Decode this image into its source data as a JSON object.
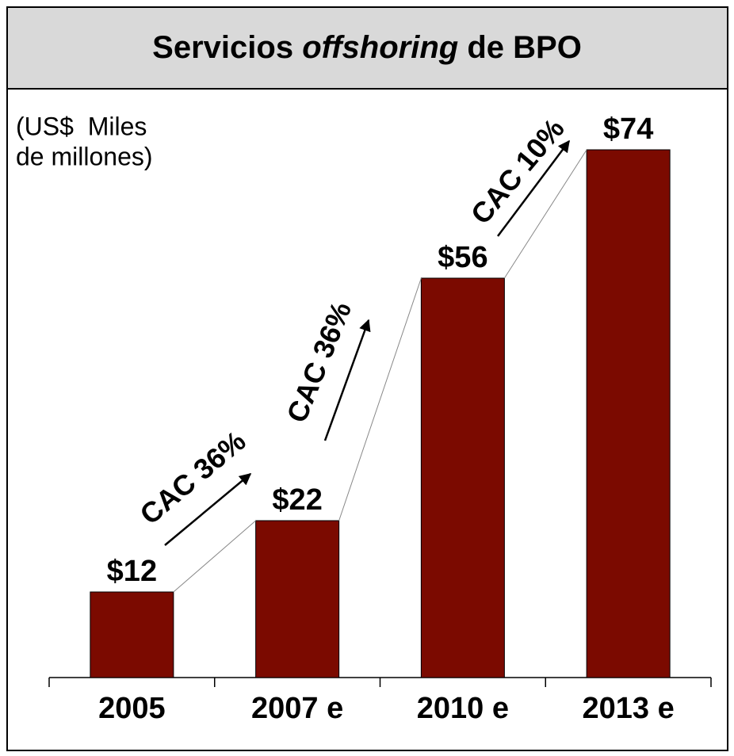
{
  "chart_data": {
    "type": "bar",
    "title": [
      "Servicios",
      "offshoring",
      "de BPO"
    ],
    "unit_note": [
      "(US$  Miles",
      "de millones)"
    ],
    "categories": [
      "2005",
      "2007 e",
      "2010 e",
      "2013 e"
    ],
    "values": [
      12,
      22,
      56,
      74
    ],
    "value_labels": [
      "$12",
      "$22",
      "$56",
      "$74"
    ],
    "color": "#7b0a00",
    "annotations": [
      "CAC 36%",
      "CAC 36%",
      "CAC 10%"
    ]
  }
}
